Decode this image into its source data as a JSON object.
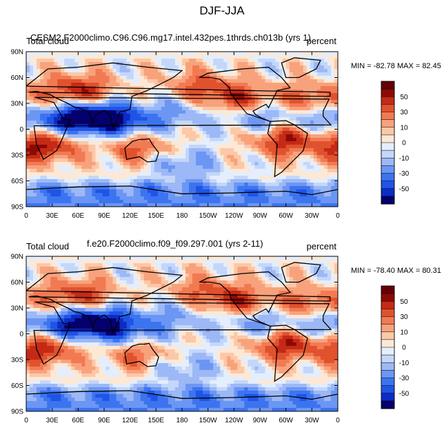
{
  "title": "DJF-JJA",
  "chart_data": [
    {
      "type": "heatmap",
      "variable": "Total cloud",
      "case": "CESM2.F2000climo.C96.C96.mg17.intel.432pes.1thrds.ch013b (yrs 1)",
      "units": "percent",
      "minmax": "MIN = -82.78 MAX = 82.45",
      "xlim": [
        0,
        360
      ],
      "ylim": [
        -90,
        90
      ],
      "xticks": [
        "0",
        "30E",
        "60E",
        "90E",
        "120E",
        "150E",
        "180",
        "150W",
        "120W",
        "90W",
        "60W",
        "30W",
        "0"
      ],
      "yticks": [
        "90N",
        "60N",
        "30N",
        "0",
        "30S",
        "60S",
        "90S"
      ],
      "field_centers": [
        {
          "lon": 60,
          "lat": 45,
          "value": 50
        },
        {
          "lon": 20,
          "lat": -20,
          "value": 55
        },
        {
          "lon": 80,
          "lat": 15,
          "value": -55
        },
        {
          "lon": 55,
          "lat": 10,
          "value": -40
        },
        {
          "lon": 120,
          "lat": 8,
          "value": -35
        },
        {
          "lon": 130,
          "lat": -22,
          "value": 35
        },
        {
          "lon": 300,
          "lat": -12,
          "value": 50
        },
        {
          "lon": 245,
          "lat": 35,
          "value": 40
        },
        {
          "lon": 330,
          "lat": 35,
          "value": 35
        },
        {
          "lon": 270,
          "lat": 12,
          "value": -30
        },
        {
          "lon": 200,
          "lat": 50,
          "value": 30
        },
        {
          "lon": 180,
          "lat": -40,
          "value": -25
        },
        {
          "lon": 350,
          "lat": 10,
          "value": -30
        },
        {
          "lon": 180,
          "lat": 20,
          "value": -20
        }
      ]
    },
    {
      "type": "heatmap",
      "variable": "Total cloud",
      "case": "f.e20.F2000climo.f09_f09.297.001 (yrs 2-11)",
      "units": "percent",
      "minmax": "MIN = -78.40 MAX = 80.31",
      "xlim": [
        0,
        360
      ],
      "ylim": [
        -90,
        90
      ],
      "xticks": [
        "0",
        "30E",
        "60E",
        "90E",
        "120E",
        "150E",
        "180",
        "150W",
        "120W",
        "90W",
        "60W",
        "30W",
        "0"
      ],
      "yticks": [
        "90N",
        "60N",
        "30N",
        "0",
        "30S",
        "60S",
        "90S"
      ],
      "field_centers": [
        {
          "lon": 60,
          "lat": 45,
          "value": 45
        },
        {
          "lon": 20,
          "lat": -18,
          "value": 50
        },
        {
          "lon": 80,
          "lat": 15,
          "value": -50
        },
        {
          "lon": 55,
          "lat": 8,
          "value": -35
        },
        {
          "lon": 120,
          "lat": 5,
          "value": -35
        },
        {
          "lon": 130,
          "lat": -25,
          "value": 30
        },
        {
          "lon": 300,
          "lat": -12,
          "value": 50
        },
        {
          "lon": 245,
          "lat": 38,
          "value": 40
        },
        {
          "lon": 330,
          "lat": 35,
          "value": 35
        },
        {
          "lon": 270,
          "lat": 12,
          "value": -30
        },
        {
          "lon": 200,
          "lat": 50,
          "value": 25
        },
        {
          "lon": 180,
          "lat": -40,
          "value": -20
        },
        {
          "lon": 350,
          "lat": 10,
          "value": -30
        },
        {
          "lon": 180,
          "lat": 20,
          "value": -20
        }
      ]
    }
  ],
  "colorbar": {
    "labels": [
      "50",
      "30",
      "10",
      "0",
      "-10",
      "-30",
      "-50"
    ],
    "levels": [
      -60,
      -50,
      -40,
      -30,
      -20,
      -10,
      -5,
      0,
      5,
      10,
      20,
      30,
      40,
      50,
      60
    ],
    "colors": [
      "#05006e",
      "#0c2cc4",
      "#1f54e6",
      "#3c74f0",
      "#6c96f4",
      "#9cb8f6",
      "#c4d7fa",
      "#e4eefc",
      "#fde8d6",
      "#fbc8a8",
      "#f8a27c",
      "#f27a52",
      "#e0522e",
      "#c42a16",
      "#8c0a06",
      "#640004"
    ]
  }
}
